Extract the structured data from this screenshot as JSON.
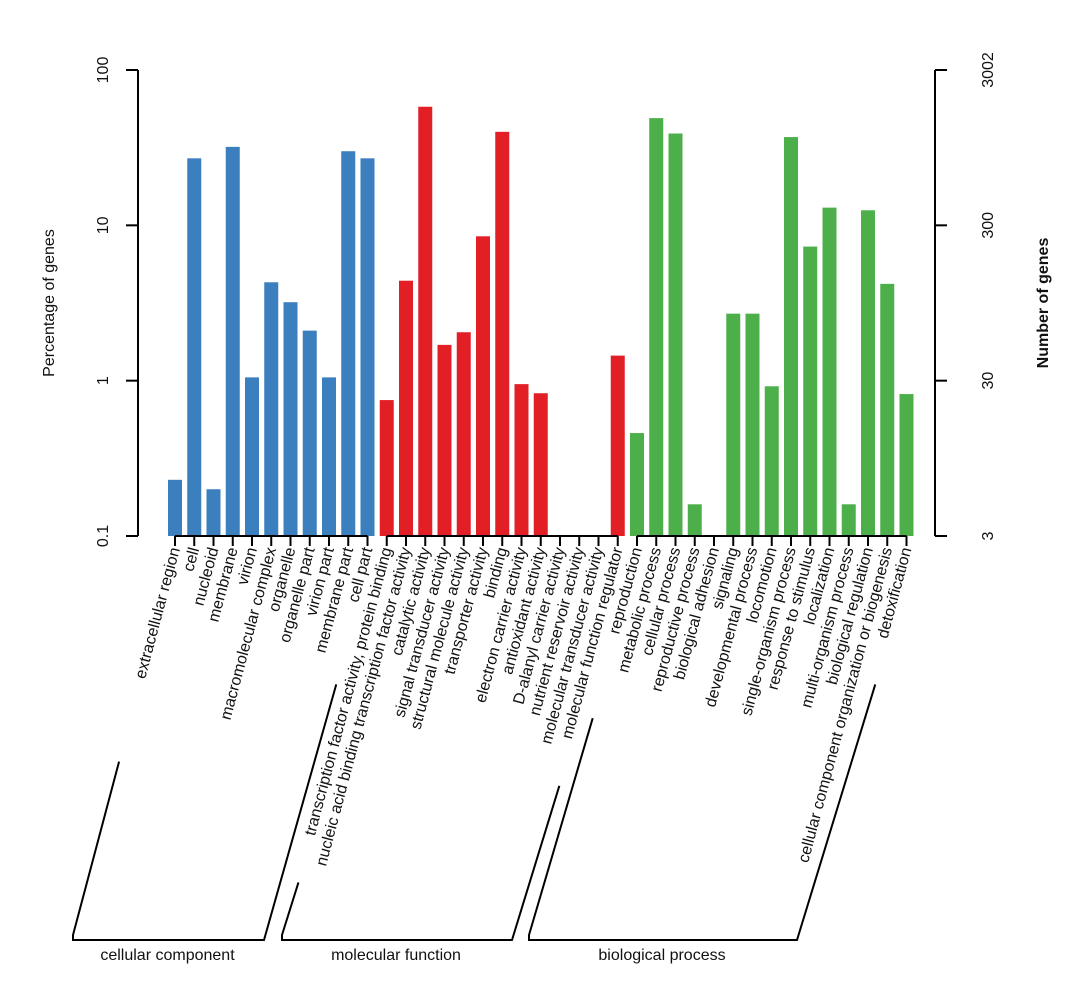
{
  "chart_data": {
    "type": "bar",
    "title": "",
    "ylabel": "Percentage of genes",
    "y2label": "Number of genes",
    "y_scale": "log",
    "ylim": [
      0.1,
      100
    ],
    "y_ticks": [
      "0.1",
      "1",
      "10",
      "100"
    ],
    "y2_ticks": [
      "3",
      "30",
      "300",
      "3002"
    ],
    "grid": false,
    "groups": [
      {
        "name": "cellular component",
        "color": "#3b7fbf",
        "categories": [
          "extracellular region",
          "cell",
          "nucleoid",
          "membrane",
          "virion",
          "macromolecular complex",
          "organelle",
          "organelle part",
          "virion part",
          "membrane part",
          "cell part"
        ],
        "values": [
          0.23,
          27,
          0.2,
          32,
          1.05,
          4.3,
          3.2,
          2.1,
          1.05,
          30,
          27
        ]
      },
      {
        "name": "molecular function",
        "color": "#e31f26",
        "categories": [
          "transcription factor activity, protein binding",
          "nucleic acid binding transcription factor activity",
          "catalytic activity",
          "signal transducer activity",
          "structural molecule activity",
          "transporter activity",
          "binding",
          "electron carrier activity",
          "antioxidant activity",
          "D-alanyl carrier activity",
          "nutrient reservoir activity",
          "molecular transducer activity",
          "molecular function regulator"
        ],
        "values": [
          0.75,
          4.4,
          58,
          1.7,
          2.05,
          8.5,
          40,
          0.95,
          0.83,
          null,
          null,
          null,
          1.45
        ]
      },
      {
        "name": "biological process",
        "color": "#4daf4a",
        "categories": [
          "reproduction",
          "metabolic process",
          "cellular process",
          "reproductive process",
          "biological adhesion",
          "signaling",
          "developmental process",
          "locomotion",
          "single-organism process",
          "response to stimulus",
          "localization",
          "multi-organism process",
          "biological regulation",
          "cellular component organization or biogenesis",
          "detoxification"
        ],
        "values": [
          0.46,
          49,
          39,
          0.16,
          null,
          2.7,
          2.7,
          0.92,
          37,
          7.3,
          13,
          0.16,
          12.5,
          4.2,
          0.82
        ]
      }
    ]
  }
}
